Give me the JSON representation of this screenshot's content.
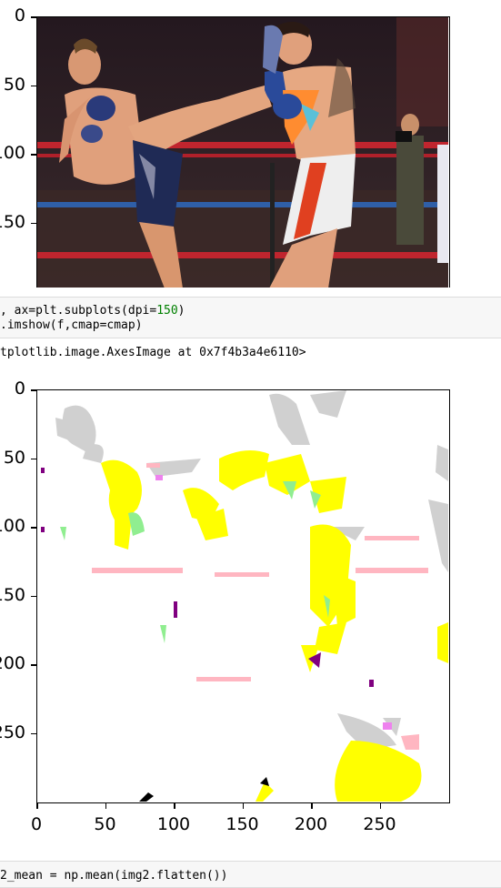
{
  "plot1": {
    "y_tick_labels": [
      "0",
      "50",
      "100",
      "150"
    ],
    "y_tick_values": [
      0,
      50,
      100,
      150
    ],
    "image_height_rows": 193,
    "image_width_cols": 300,
    "description_colors": {
      "background": "#2a1e24",
      "rope_red": "#c0252e",
      "rope_blue": "#2f5fa8",
      "skin": "#e0a07c",
      "shorts_dark": "#1f2a55",
      "shorts_white": "#eee",
      "shorts_red": "#e04020"
    }
  },
  "code_cell": {
    "line1_prefix": ", ax=plt.subplots(dpi=",
    "line1_number": "150",
    "line1_suffix": ")",
    "line2": ".imshow(f,cmap=cmap)"
  },
  "output_text": "tplotlib.image.AxesImage at 0x7f4b3a4e6110>",
  "plot2": {
    "y_tick_labels": [
      "0",
      "50",
      "100",
      "150",
      "200",
      "250"
    ],
    "y_tick_values": [
      0,
      50,
      100,
      150,
      200,
      250
    ],
    "x_tick_labels": [
      "0",
      "50",
      "100",
      "150",
      "200",
      "250"
    ],
    "x_tick_values": [
      0,
      50,
      100,
      150,
      200,
      250
    ],
    "x_range": [
      0,
      300
    ],
    "y_range": [
      0,
      300
    ],
    "colors": {
      "white": "#ffffff",
      "yellow": "#ffff00",
      "gray": "#d0d0d0",
      "pink": "#ffb6c1",
      "green": "#90ee90",
      "violet": "#ee82ee",
      "purple": "#800080",
      "black": "#000000"
    }
  },
  "bottom_cell_partial": "2_mean = np.mean(img2.flatten())"
}
